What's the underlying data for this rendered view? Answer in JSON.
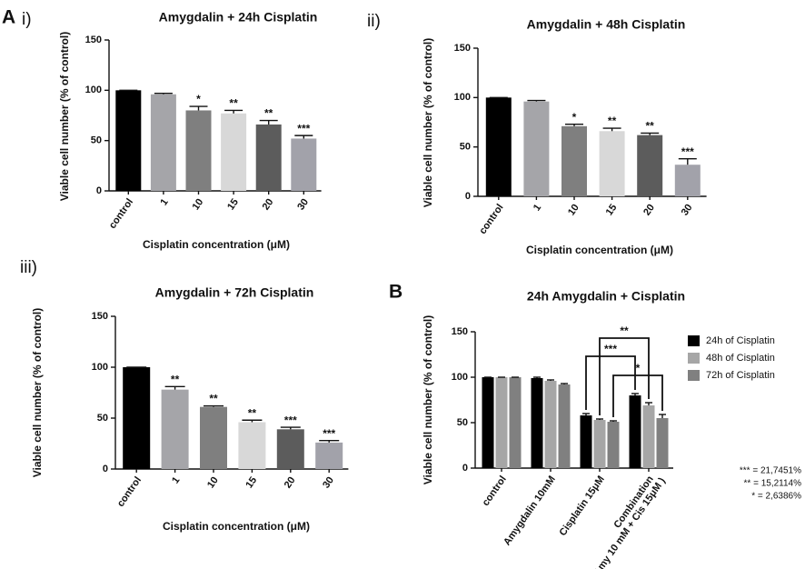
{
  "figure_label": "A",
  "chart_data": [
    {
      "type": "bar",
      "panel": "i)",
      "title": "Amygdalin + 24h Cisplatin",
      "x_label": "Cisplatin concentration (μM)",
      "y_label": "Viable cell number (% of control)",
      "categories": [
        "control",
        "1",
        "10",
        "15",
        "20",
        "30"
      ],
      "values": [
        100,
        96,
        80,
        77,
        66,
        52
      ],
      "errors": [
        0,
        1,
        4,
        3,
        4,
        3
      ],
      "annotations": [
        null,
        null,
        "*",
        "**",
        "**",
        "***"
      ],
      "colors": [
        "#000000",
        "#a5a5a9",
        "#7f7f7f",
        "#d8d8d8",
        "#5c5c5c",
        "#a2a2aa"
      ],
      "ylim": [
        0,
        150
      ],
      "yticks": [
        0,
        50,
        100,
        150
      ]
    },
    {
      "type": "bar",
      "panel": "ii)",
      "title": "Amygdalin + 48h Cisplatin",
      "x_label": "Cisplatin concentration (μM)",
      "y_label": "Viable cell number (% of control)",
      "categories": [
        "control",
        "1",
        "10",
        "15",
        "20",
        "30"
      ],
      "values": [
        100,
        96,
        71,
        66,
        62,
        32
      ],
      "errors": [
        0,
        1,
        2,
        3,
        2,
        6
      ],
      "annotations": [
        null,
        null,
        "*",
        "**",
        "**",
        "***"
      ],
      "colors": [
        "#000000",
        "#a5a5a9",
        "#7f7f7f",
        "#d8d8d8",
        "#5c5c5c",
        "#a2a2aa"
      ],
      "ylim": [
        0,
        150
      ],
      "yticks": [
        0,
        50,
        100,
        150
      ]
    },
    {
      "type": "bar",
      "panel": "iii)",
      "title": "Amygdalin + 72h Cisplatin",
      "x_label": "Cisplatin concentration (μM)",
      "y_label": "Viable cell number (% of control)",
      "categories": [
        "control",
        "1",
        "10",
        "15",
        "20",
        "30"
      ],
      "values": [
        100,
        78,
        61,
        46,
        39,
        26
      ],
      "errors": [
        0,
        3,
        1,
        2,
        2,
        2
      ],
      "annotations": [
        null,
        "**",
        "**",
        "**",
        "***",
        "***"
      ],
      "colors": [
        "#000000",
        "#a5a5a9",
        "#7f7f7f",
        "#d8d8d8",
        "#5c5c5c",
        "#a2a2aa"
      ],
      "ylim": [
        0,
        150
      ],
      "yticks": [
        0,
        50,
        100,
        150
      ]
    },
    {
      "type": "grouped",
      "panel": "B",
      "title": "24h Amygdalin + Cisplatin",
      "y_label": "Viable cell number (% of control)",
      "categories": [
        "control",
        "Amygdalin 10mM",
        "Cisplatin 15μM",
        "Combination"
      ],
      "category_notes": [
        null,
        null,
        null,
        "(Amy 10 mM + Cis 15μM )"
      ],
      "series": [
        {
          "name": "24h of Cisplatin",
          "color": "#000000",
          "values": [
            100,
            99,
            58,
            80
          ],
          "errors": [
            0,
            1,
            2,
            2
          ]
        },
        {
          "name": "48h of Cisplatin",
          "color": "#a6a6a6",
          "values": [
            100,
            96,
            53,
            69
          ],
          "errors": [
            0,
            1,
            1,
            3
          ]
        },
        {
          "name": "72h of Cisplatin",
          "color": "#808080",
          "values": [
            100,
            92,
            51,
            55
          ],
          "errors": [
            0,
            1,
            1,
            4
          ]
        }
      ],
      "comparisons": [
        "***",
        "**",
        "*"
      ],
      "footnotes": [
        "*** =  21,7451%",
        "** =  15,2114%",
        "* =   2,6386%"
      ],
      "ylim": [
        0,
        150
      ],
      "yticks": [
        0,
        50,
        100,
        150
      ]
    }
  ]
}
